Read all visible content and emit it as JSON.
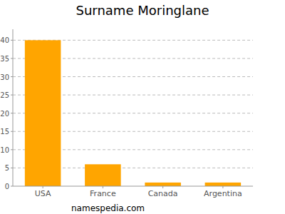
{
  "chart_data": {
    "type": "bar",
    "title": "Surname Moringlane",
    "categories": [
      "USA",
      "France",
      "Canada",
      "Argentina"
    ],
    "values": [
      40,
      6,
      1,
      1
    ],
    "color": "#ffa500",
    "ylim": [
      0,
      43
    ],
    "yticks": [
      0,
      5,
      10,
      15,
      20,
      25,
      30,
      35,
      40
    ],
    "grid": true,
    "annotations": [
      "namespedia.com"
    ]
  }
}
